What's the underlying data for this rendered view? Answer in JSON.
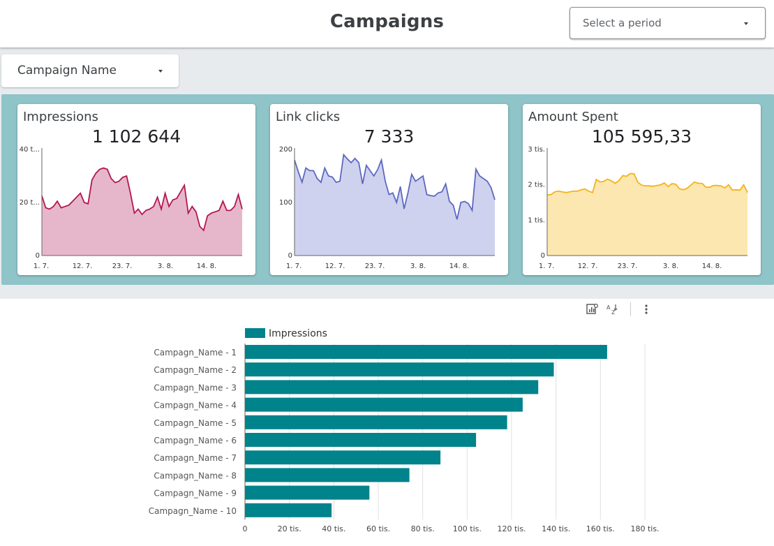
{
  "header": {
    "title": "Campaigns",
    "period_placeholder": "Select a period"
  },
  "filter": {
    "campaign_label": "Campaign Name"
  },
  "colors": {
    "impressions_line": "#b3164f",
    "impressions_fill": "#e6b7ca",
    "clicks_line": "#5c68c0",
    "clicks_fill": "#cfd2ee",
    "spent_line": "#f3b31b",
    "spent_fill": "#fde7b0",
    "bar": "#00838b"
  },
  "kpis": [
    {
      "title": "Impressions",
      "value": "1 102 644",
      "y_ticks": [
        "0",
        "20 t...",
        "40 t..."
      ],
      "y_max": 40000,
      "x_ticks": [
        "1. 7.",
        "12. 7.",
        "23. 7.",
        "3. 8.",
        "14. 8."
      ],
      "series": [
        22500,
        18000,
        17500,
        18500,
        20500,
        18000,
        18500,
        19000,
        20500,
        22000,
        23500,
        20000,
        19500,
        28500,
        31000,
        32500,
        33000,
        32500,
        29000,
        27500,
        28000,
        29500,
        30000,
        23500,
        16000,
        17500,
        15500,
        17000,
        17500,
        18500,
        22000,
        17500,
        23500,
        18500,
        21000,
        21500,
        24000,
        26500,
        16000,
        18500,
        16500,
        11000,
        9500,
        15000,
        16000,
        16500,
        17000,
        20500,
        17000,
        17000,
        18500,
        23000,
        17500
      ]
    },
    {
      "title": "Link clicks",
      "value": "7 333",
      "y_ticks": [
        "0",
        "100",
        "200"
      ],
      "y_max": 200,
      "x_ticks": [
        "1. 7.",
        "12. 7.",
        "23. 7.",
        "3. 8.",
        "14. 8."
      ],
      "series": [
        180,
        158,
        138,
        165,
        160,
        160,
        145,
        138,
        165,
        150,
        148,
        138,
        140,
        190,
        182,
        175,
        183,
        175,
        135,
        170,
        160,
        150,
        162,
        180,
        140,
        115,
        118,
        100,
        130,
        88,
        118,
        153,
        140,
        145,
        150,
        115,
        113,
        112,
        118,
        120,
        135,
        102,
        95,
        68,
        100,
        102,
        98,
        85,
        163,
        150,
        145,
        140,
        128,
        105
      ]
    },
    {
      "title": "Amount Spent",
      "value": "105 595,33",
      "y_ticks": [
        "0",
        "1 tis.",
        "2 tis.",
        "3 tis."
      ],
      "y_max": 3000,
      "x_ticks": [
        "1. 7.",
        "12. 7.",
        "23. 7.",
        "3. 8.",
        "14. 8."
      ],
      "series": [
        1720,
        1720,
        1800,
        1820,
        1800,
        1780,
        1800,
        1820,
        1820,
        1860,
        1880,
        1820,
        1780,
        2150,
        2080,
        2100,
        2160,
        2110,
        2040,
        2120,
        2260,
        2240,
        2320,
        2310,
        2070,
        1990,
        1970,
        1970,
        1960,
        1980,
        2000,
        2050,
        1950,
        2030,
        2020,
        1890,
        1860,
        1900,
        1990,
        2080,
        2040,
        2040,
        1930,
        1930,
        1980,
        1980,
        1970,
        1910,
        2000,
        1850,
        1860,
        1850,
        2000,
        1780
      ]
    }
  ],
  "chart_data": {
    "type": "bar",
    "orientation": "horizontal",
    "legend": "Impressions",
    "categories": [
      "Campagn_Name - 1",
      "Campagn_Name - 2",
      "Campagn_Name - 3",
      "Campagn_Name - 4",
      "Campagn_Name - 5",
      "Campagn_Name - 6",
      "Campagn_Name - 7",
      "Campagn_Name - 8",
      "Campagn_Name - 9",
      "Campagn_Name - 10"
    ],
    "values": [
      163000,
      139000,
      132000,
      125000,
      118000,
      104000,
      88000,
      74000,
      56000,
      39000
    ],
    "x_ticks": [
      {
        "value": 0,
        "label": "0"
      },
      {
        "value": 20000,
        "label": "20 tis."
      },
      {
        "value": 40000,
        "label": "40 tis."
      },
      {
        "value": 60000,
        "label": "60 tis."
      },
      {
        "value": 80000,
        "label": "80 tis."
      },
      {
        "value": 100000,
        "label": "100 tis."
      },
      {
        "value": 120000,
        "label": "120 tis."
      },
      {
        "value": 140000,
        "label": "140 tis."
      },
      {
        "value": 160000,
        "label": "160 tis."
      },
      {
        "value": 180000,
        "label": "180 tis."
      }
    ],
    "xlim": [
      0,
      180000
    ]
  }
}
